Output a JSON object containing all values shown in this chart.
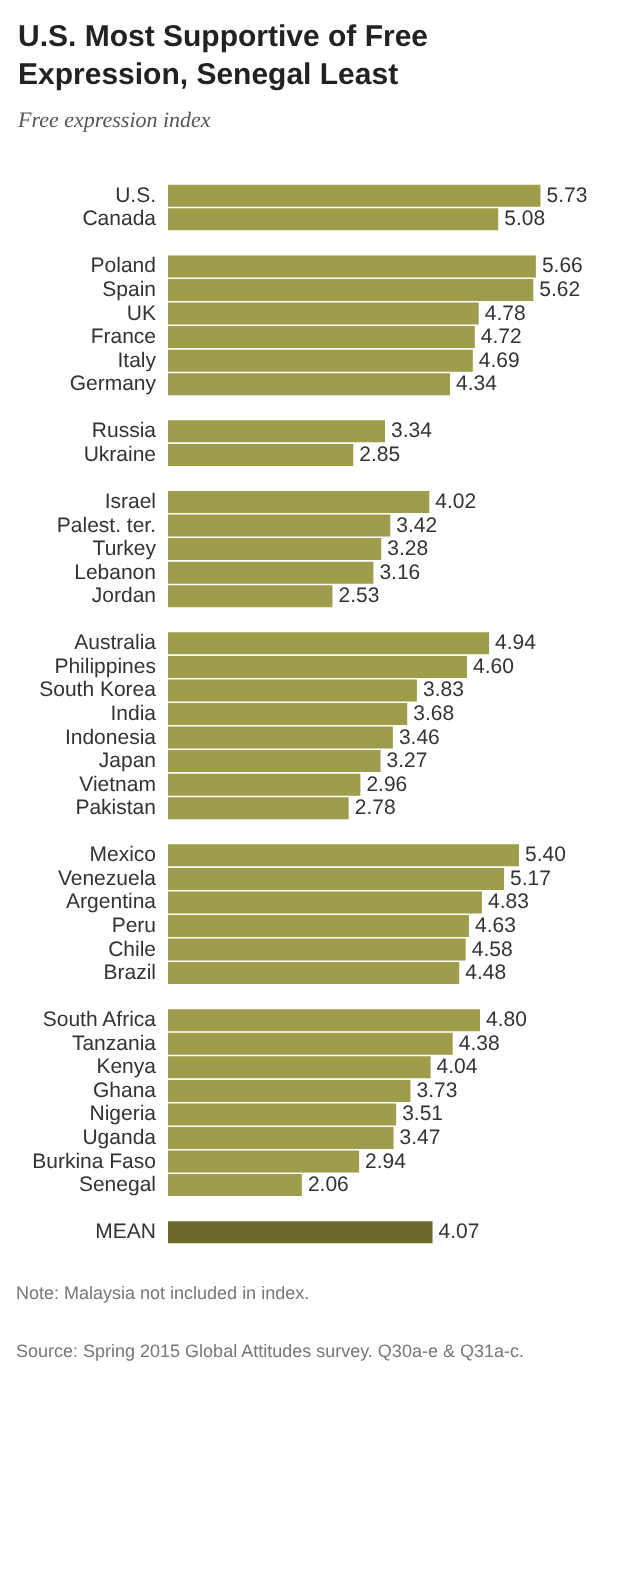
{
  "chart_data": {
    "type": "bar",
    "orientation": "horizontal",
    "title": "U.S. Most Supportive of Free Expression, Senegal Least",
    "subtitle": "Free expression index",
    "categories": [
      "U.S.",
      "Canada",
      null,
      "Poland",
      "Spain",
      "UK",
      "France",
      "Italy",
      "Germany",
      null,
      "Russia",
      "Ukraine",
      null,
      "Israel",
      "Palest. ter.",
      "Turkey",
      "Lebanon",
      "Jordan",
      null,
      "Australia",
      "Philippines",
      "South Korea",
      "India",
      "Indonesia",
      "Japan",
      "Vietnam",
      "Pakistan",
      null,
      "Mexico",
      "Venezuela",
      "Argentina",
      "Peru",
      "Chile",
      "Brazil",
      null,
      "South Africa",
      "Tanzania",
      "Kenya",
      "Ghana",
      "Nigeria",
      "Uganda",
      "Burkina Faso",
      "Senegal",
      null,
      "MEAN"
    ],
    "values": [
      5.73,
      5.08,
      null,
      5.66,
      5.62,
      4.78,
      4.72,
      4.69,
      4.34,
      null,
      3.34,
      2.85,
      null,
      4.02,
      3.42,
      3.28,
      3.16,
      2.53,
      null,
      4.94,
      4.6,
      3.83,
      3.68,
      3.46,
      3.27,
      2.96,
      2.78,
      null,
      5.4,
      5.17,
      4.83,
      4.63,
      4.58,
      4.48,
      null,
      4.8,
      4.38,
      4.04,
      3.73,
      3.51,
      3.47,
      2.94,
      2.06,
      null,
      4.07
    ],
    "value_labels": [
      "5.73",
      "5.08",
      null,
      "5.66",
      "5.62",
      "4.78",
      "4.72",
      "4.69",
      "4.34",
      null,
      "3.34",
      "2.85",
      null,
      "4.02",
      "3.42",
      "3.28",
      "3.16",
      "2.53",
      null,
      "4.94",
      "4.60",
      "3.83",
      "3.68",
      "3.46",
      "3.27",
      "2.96",
      "2.78",
      null,
      "5.40",
      "5.17",
      "4.83",
      "4.63",
      "4.58",
      "4.48",
      null,
      "4.80",
      "4.38",
      "4.04",
      "3.73",
      "3.51",
      "3.47",
      "2.94",
      "2.06",
      null,
      "4.07"
    ],
    "colors": [
      "#9e9d4b",
      "#9e9d4b",
      null,
      "#9e9d4b",
      "#9e9d4b",
      "#9e9d4b",
      "#9e9d4b",
      "#9e9d4b",
      "#9e9d4b",
      null,
      "#9e9d4b",
      "#9e9d4b",
      null,
      "#9e9d4b",
      "#9e9d4b",
      "#9e9d4b",
      "#9e9d4b",
      "#9e9d4b",
      null,
      "#9e9d4b",
      "#9e9d4b",
      "#9e9d4b",
      "#9e9d4b",
      "#9e9d4b",
      "#9e9d4b",
      "#9e9d4b",
      "#9e9d4b",
      null,
      "#9e9d4b",
      "#9e9d4b",
      "#9e9d4b",
      "#9e9d4b",
      "#9e9d4b",
      "#9e9d4b",
      null,
      "#9e9d4b",
      "#9e9d4b",
      "#9e9d4b",
      "#9e9d4b",
      "#9e9d4b",
      "#9e9d4b",
      "#9e9d4b",
      "#9e9d4b",
      null,
      "#6b6a2c"
    ],
    "annotations": [
      "Note: Malaysia not included in index.",
      "Source: Spring 2015 Global Attitudes survey. Q30a-e & Q31a-c."
    ]
  }
}
